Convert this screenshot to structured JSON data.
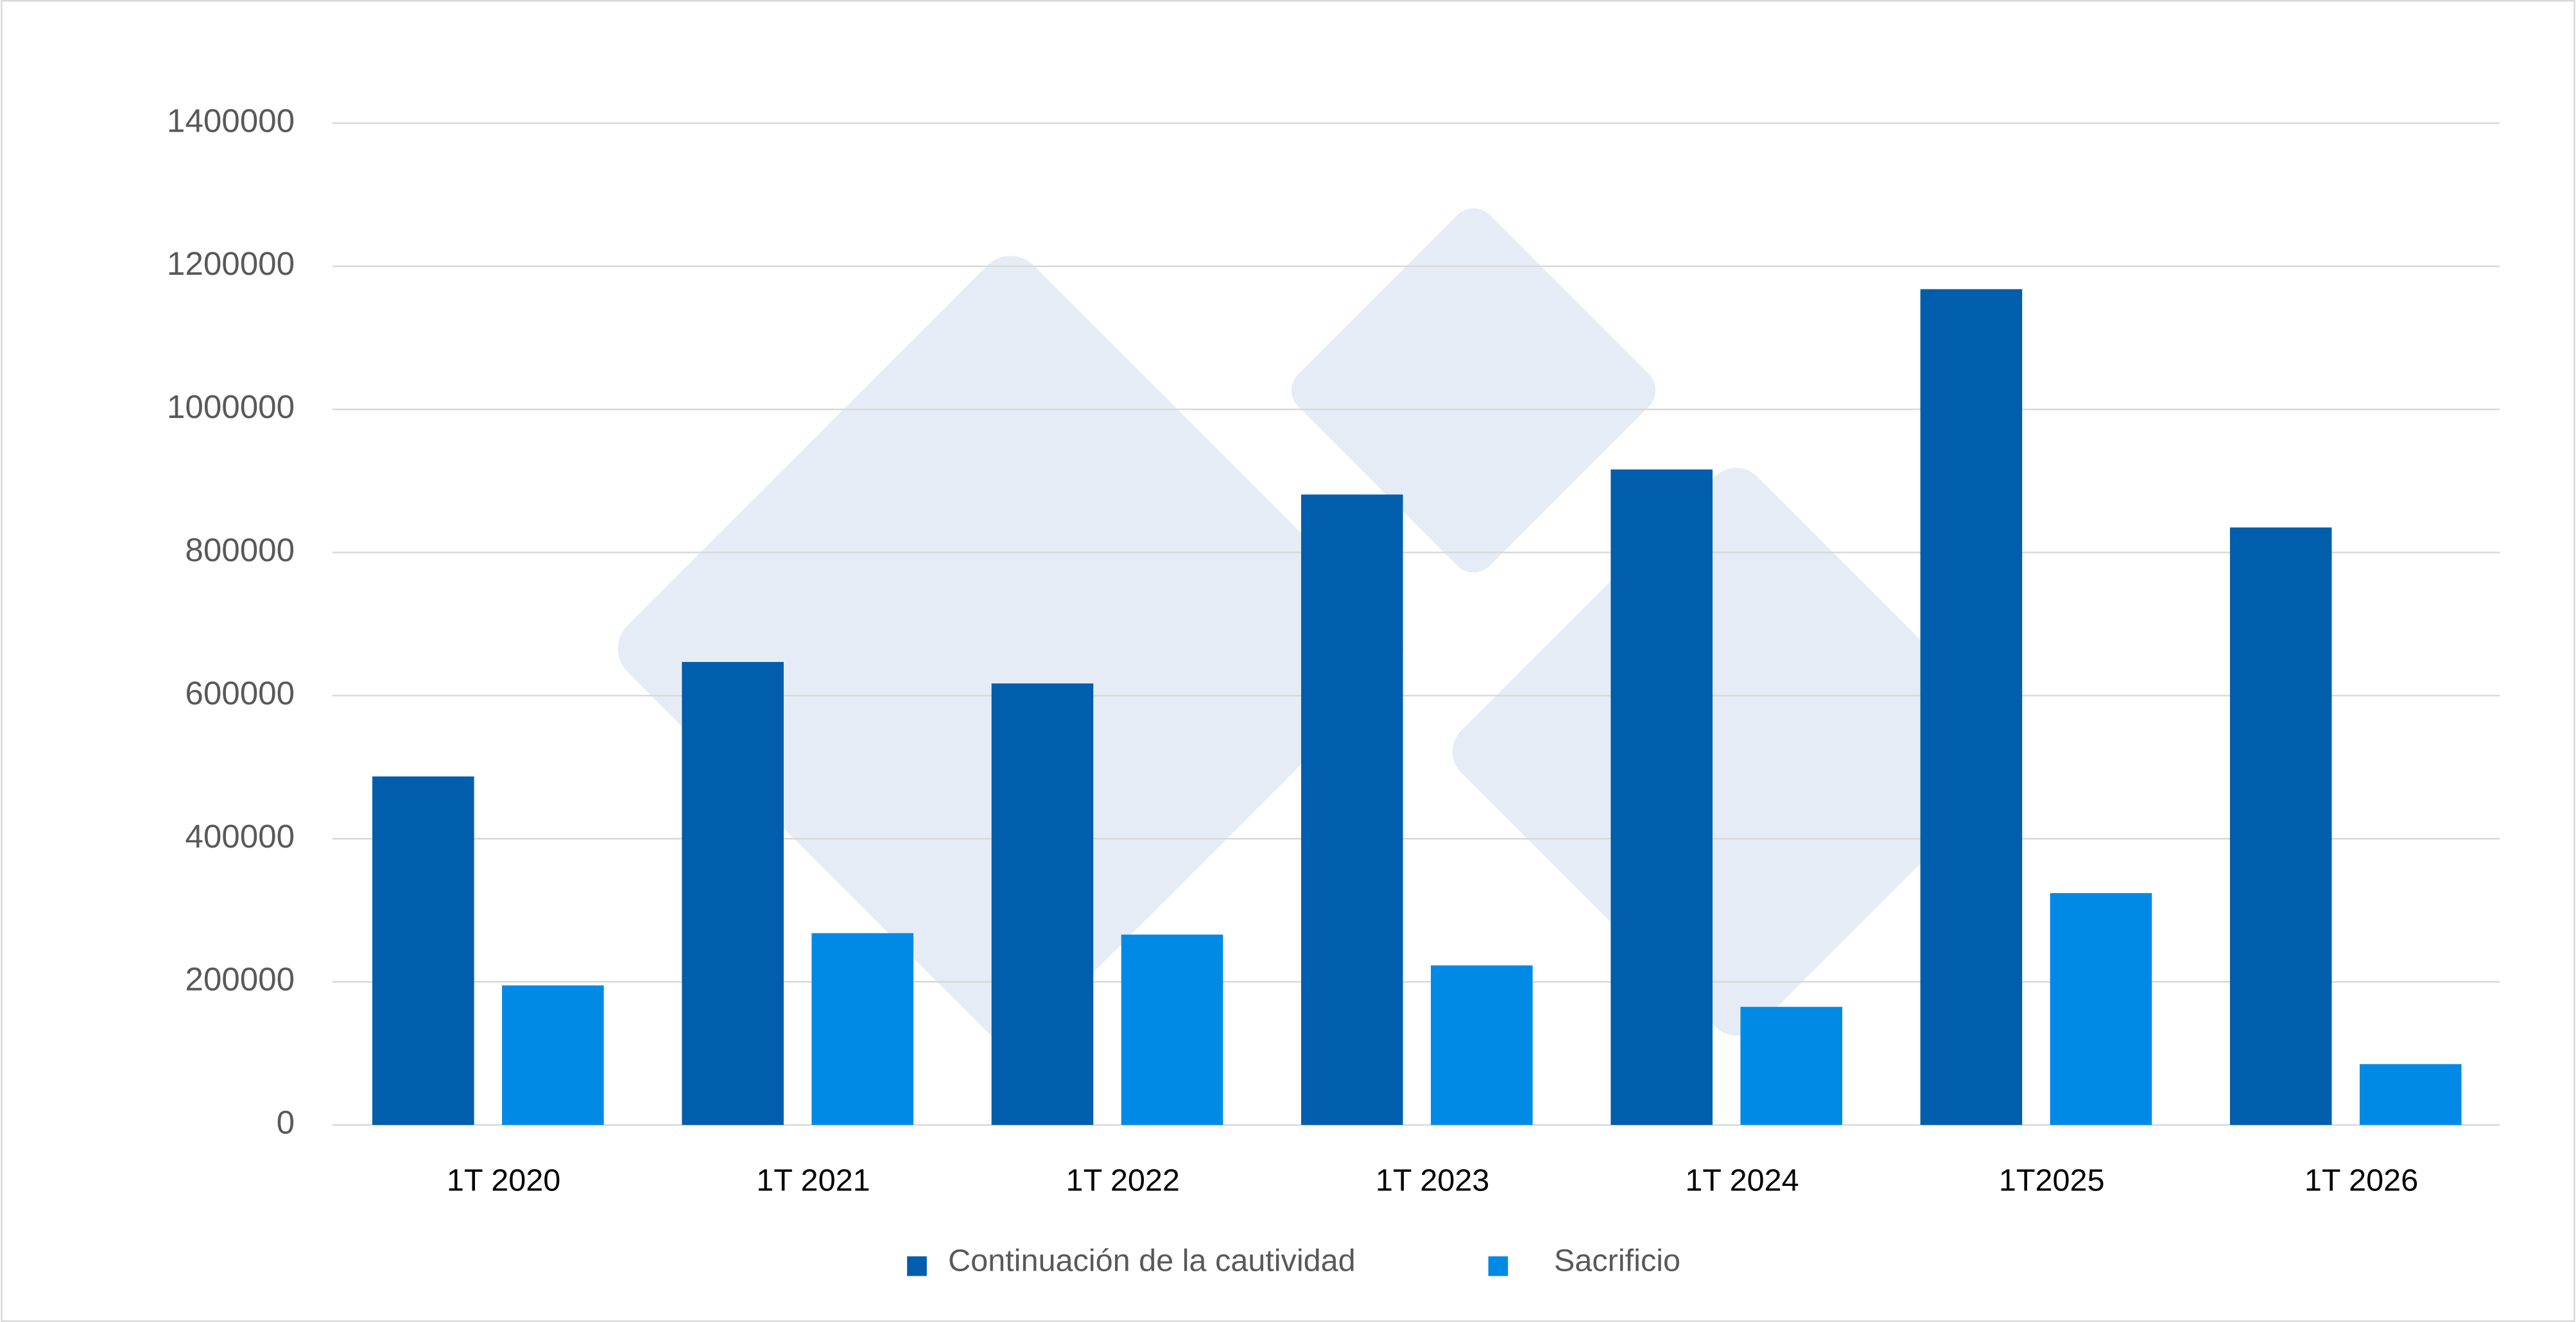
{
  "chart_data": {
    "type": "bar",
    "categories": [
      "1T 2020",
      "1T 2021",
      "1T 2022",
      "1T 2023",
      "1T 2024",
      "1T2025",
      "1T 2026"
    ],
    "series": [
      {
        "name": "Continuación de la cautividad",
        "color": "#005eac",
        "values": [
          487000,
          647000,
          617000,
          881000,
          916000,
          1168000,
          835000
        ]
      },
      {
        "name": "Sacrificio",
        "color": "#008ae6",
        "values": [
          195000,
          268000,
          266000,
          223000,
          165000,
          324000,
          85000
        ]
      }
    ],
    "ylim": [
      0,
      1400000
    ],
    "yticks": [
      0,
      200000,
      400000,
      600000,
      800000,
      1000000,
      1200000,
      1400000
    ],
    "grid": true,
    "legend": "bottom"
  }
}
